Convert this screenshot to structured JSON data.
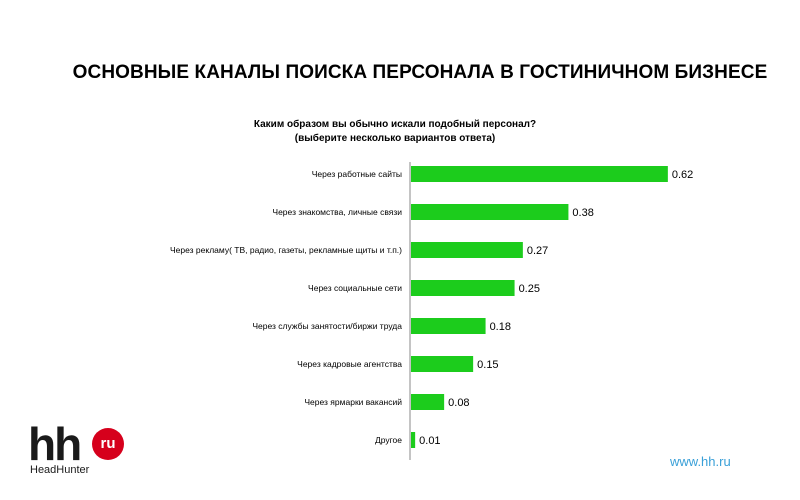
{
  "header": {
    "title": "ОСНОВНЫЕ КАНАЛЫ ПОИСКА ПЕРСОНАЛА В ГОСТИНИЧНОМ БИЗНЕСЕ"
  },
  "question": {
    "line1": "Каким образом вы обычно искали подобный персонал?",
    "line2": "(выберите несколько вариантов ответа)"
  },
  "chart_data": {
    "type": "bar",
    "orientation": "horizontal",
    "categories": [
      "Через работные сайты",
      "Через знакомства, личные связи",
      "Через рекламу( ТВ, радио, газеты, рекламные щиты и т.п.)",
      "Через социальные сети",
      "Через службы занятости/биржи труда",
      "Через кадровые агентства",
      "Через ярмарки вакансий",
      "Другое"
    ],
    "values": [
      0.62,
      0.38,
      0.27,
      0.25,
      0.18,
      0.15,
      0.08,
      0.01
    ],
    "data_labels": [
      "0.62",
      "0.38",
      "0.27",
      "0.25",
      "0.18",
      "0.15",
      "0.08",
      "0.01"
    ],
    "xlim": [
      0,
      0.7
    ],
    "grid": false,
    "bar_color": "#1ccc1c"
  },
  "branding": {
    "logo_text": "hh",
    "logo_badge": "ru",
    "logo_subtitle": "HeadHunter",
    "logo_badge_color": "#d6001c",
    "site_url": "www.hh.ru",
    "site_url_color": "#3aa0d8"
  }
}
